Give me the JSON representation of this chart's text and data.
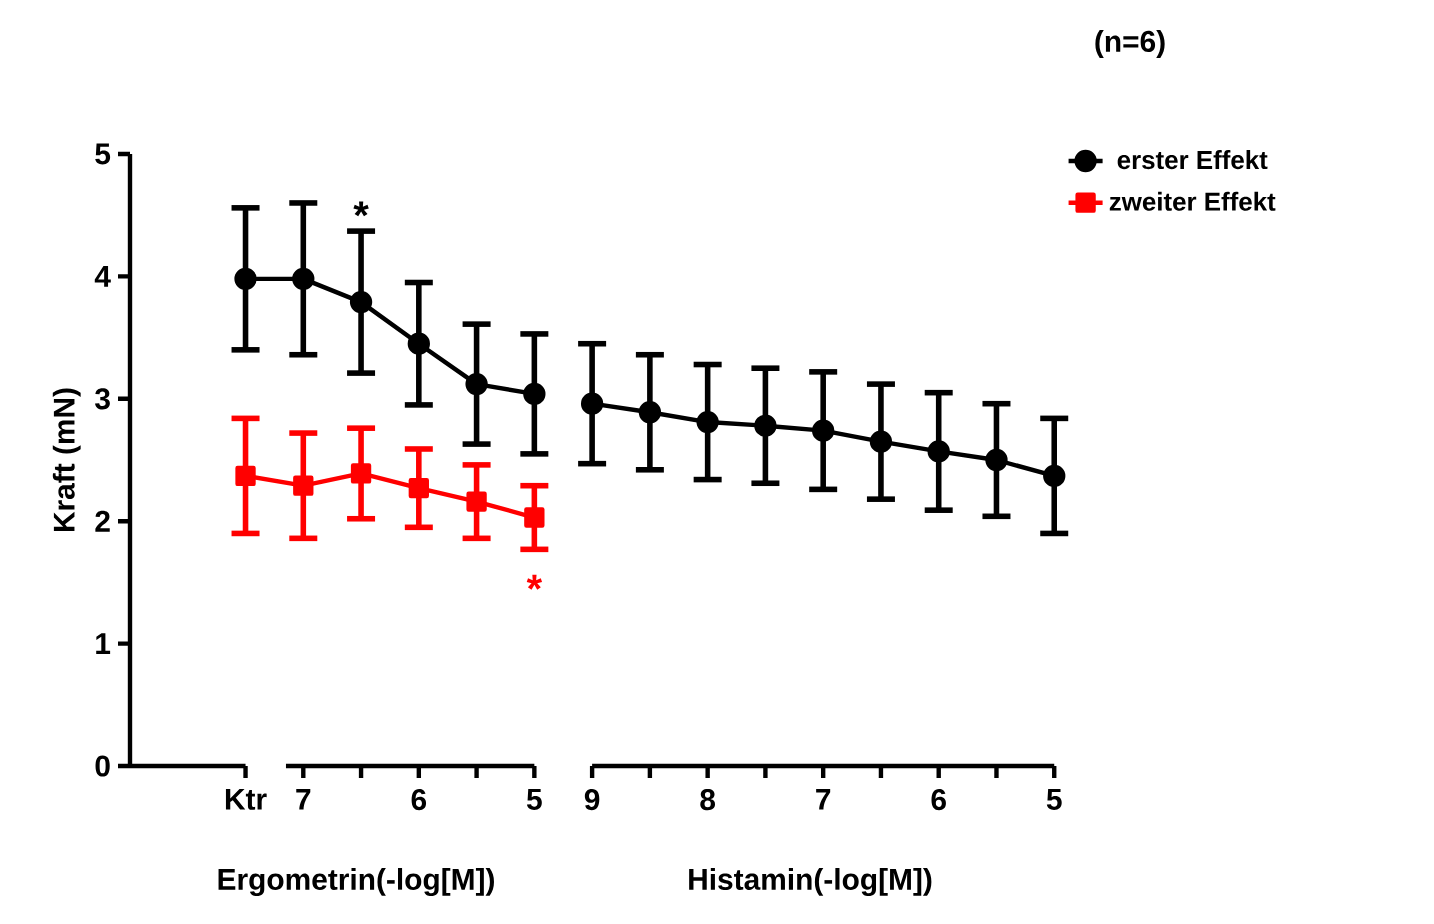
{
  "chart_data": {
    "type": "line",
    "ylabel": "Kraft (mN)",
    "categories": [
      "Ktr",
      "7",
      null,
      "6",
      null,
      "5",
      "9",
      null,
      "8",
      null,
      "7",
      null,
      "6",
      null,
      "5"
    ],
    "ylim": [
      0,
      5
    ],
    "yticks": [
      0,
      1,
      2,
      3,
      4,
      5
    ],
    "grid": false,
    "legend": "top right",
    "series": [
      {
        "name": "erster Effekt",
        "color": "#000000",
        "marker": "circle",
        "values": [
          3.98,
          3.98,
          3.79,
          3.45,
          3.12,
          3.04,
          null,
          null,
          null,
          null,
          null,
          null,
          null,
          null,
          null
        ],
        "errors": [
          0.58,
          0.62,
          0.58,
          0.5,
          0.49,
          0.49,
          null,
          null,
          null,
          null,
          null,
          null,
          null,
          null,
          null
        ]
      },
      {
        "color": "#000000",
        "marker": "circle",
        "values": [
          null,
          null,
          null,
          null,
          null,
          null,
          2.96,
          2.89,
          2.81,
          2.78,
          2.74,
          2.65,
          2.57,
          2.5,
          2.37
        ],
        "errors": [
          null,
          null,
          null,
          null,
          null,
          null,
          0.49,
          0.47,
          0.47,
          0.47,
          0.48,
          0.47,
          0.48,
          0.46,
          0.47
        ]
      },
      {
        "name": "zweiter Effekt",
        "color": "#ff0000",
        "marker": "square",
        "values": [
          2.37,
          2.29,
          2.39,
          2.27,
          2.16,
          2.03,
          null,
          null,
          null,
          null,
          null,
          null,
          null,
          null,
          null
        ],
        "errors": [
          0.47,
          0.43,
          0.37,
          0.32,
          0.3,
          0.26,
          null,
          null,
          null,
          null,
          null,
          null,
          null,
          null,
          null
        ]
      }
    ],
    "annotations": [
      "(n=6)",
      "Ergometrin(-log[M])",
      "Histamin(-log[M])",
      "*",
      "*"
    ]
  }
}
